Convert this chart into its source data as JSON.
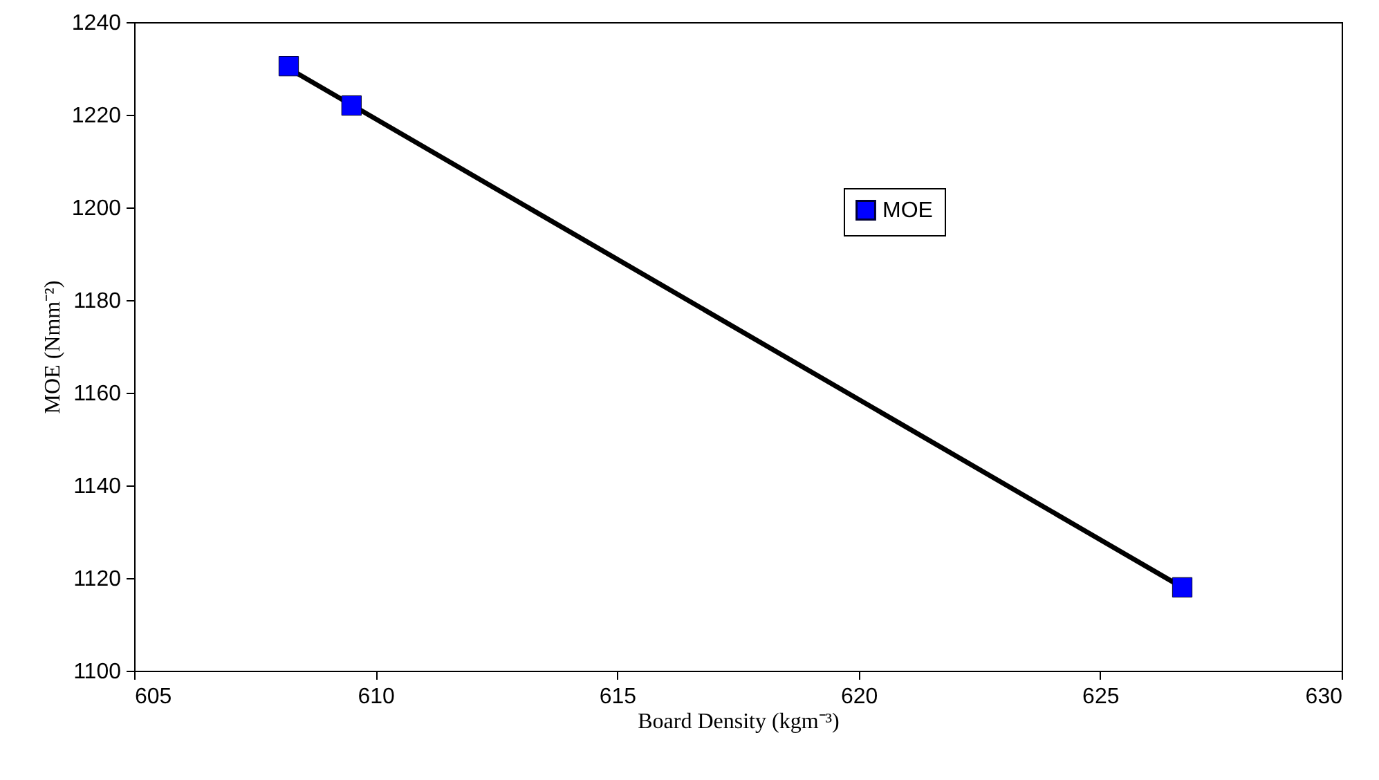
{
  "chart_data": {
    "type": "scatter",
    "xlabel": "Board Density (kgm⁻³)",
    "ylabel": "MOE (Nmm⁻²)",
    "xlim": [
      605,
      630
    ],
    "xticks": [
      605,
      610,
      615,
      620,
      625,
      630
    ],
    "ylim": [
      1100,
      1240
    ],
    "yticks": [
      1100,
      1120,
      1140,
      1160,
      1180,
      1200,
      1220,
      1240
    ],
    "grid": false,
    "legend": "top right",
    "series": [
      {
        "name": "MOE",
        "marker": "square",
        "color": "#0000ff",
        "x": [
          608.2,
          609.5,
          626.7
        ],
        "values": [
          1230.5,
          1222,
          1118
        ]
      },
      {
        "type": "line",
        "color": "#000000",
        "line_style": "solid",
        "marker": "none",
        "x": [
          608.2,
          626.7
        ],
        "values": [
          1230,
          1118
        ]
      }
    ]
  }
}
